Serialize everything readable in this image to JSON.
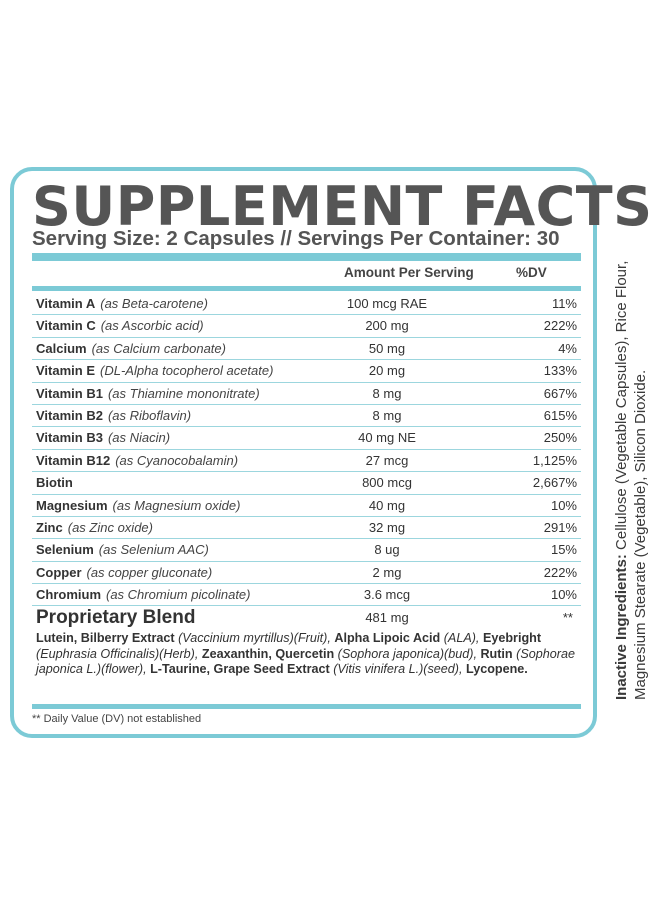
{
  "title": "SUPPLEMENT FACTS",
  "serving": "Serving Size: 2 Capsules // Servings Per Container: 30",
  "columns": {
    "amount": "Amount Per Serving",
    "dv": "%DV"
  },
  "nutrients": [
    {
      "name": "Vitamin A",
      "source": "(as Beta-carotene)",
      "amount": "100 mcg RAE",
      "dv": "11%"
    },
    {
      "name": "Vitamin C",
      "source": "(as Ascorbic acid)",
      "amount": "200 mg",
      "dv": "222%"
    },
    {
      "name": "Calcium",
      "source": "(as Calcium carbonate)",
      "amount": "50 mg",
      "dv": "4%"
    },
    {
      "name": "Vitamin E",
      "source": "(DL-Alpha tocopherol acetate)",
      "amount": "20 mg",
      "dv": "133%"
    },
    {
      "name": "Vitamin B1",
      "source": "(as Thiamine mononitrate)",
      "amount": "8 mg",
      "dv": "667%"
    },
    {
      "name": "Vitamin B2",
      "source": "(as Riboflavin)",
      "amount": "8 mg",
      "dv": "615%"
    },
    {
      "name": "Vitamin B3",
      "source": "(as Niacin)",
      "amount": "40 mg NE",
      "dv": "250%"
    },
    {
      "name": "Vitamin B12",
      "source": "(as Cyanocobalamin)",
      "amount": "27 mcg",
      "dv": "1,125%"
    },
    {
      "name": "Biotin",
      "source": "",
      "amount": "800 mcg",
      "dv": "2,667%"
    },
    {
      "name": "Magnesium",
      "source": "(as Magnesium oxide)",
      "amount": "40 mg",
      "dv": "10%"
    },
    {
      "name": "Zinc",
      "source": "(as Zinc oxide)",
      "amount": "32 mg",
      "dv": "291%"
    },
    {
      "name": "Selenium",
      "source": "(as Selenium AAC)",
      "amount": "8 ug",
      "dv": "15%"
    },
    {
      "name": "Copper",
      "source": "(as copper gluconate)",
      "amount": "2 mg",
      "dv": "222%"
    },
    {
      "name": "Chromium",
      "source": "(as Chromium picolinate)",
      "amount": "3.6 mcg",
      "dv": "10%"
    }
  ],
  "blend": {
    "name": "Proprietary Blend",
    "amount": "481 mg",
    "dv": "**",
    "ingredients": [
      {
        "name": "Lutein, Bilberry Extract",
        "detail": "(Vaccinium myrtillus)(Fruit),",
        "sep": " "
      },
      {
        "name": "Alpha Lipoic Acid",
        "detail": "(ALA),",
        "sep": " "
      },
      {
        "name": "Eyebright",
        "detail": "(Euphrasia Officinalis)(Herb),",
        "sep": " "
      },
      {
        "name": "Zeaxanthin, Quercetin",
        "detail": "(Sophora japonica)(bud),",
        "sep": " "
      },
      {
        "name": "Rutin",
        "detail": "(Sophorae japonica L.)(flower),",
        "sep": " "
      },
      {
        "name": "L-Taurine, Grape Seed Extract",
        "detail": "(Vitis vinifera L.)(seed),",
        "sep": " "
      },
      {
        "name": "Lycopene.",
        "detail": "",
        "sep": ""
      }
    ]
  },
  "footnote": "** Daily Value (DV) not established",
  "inactive": {
    "label": "Inactive Ingredients:",
    "text": "Cellulose (Vegetable Capsules), Rice Flour, Magnesium Stearate (Vegetable), Silicon Dioxide."
  },
  "colors": {
    "accent": "#7ccad6",
    "text": "#3a3a3a",
    "title": "#555555"
  }
}
